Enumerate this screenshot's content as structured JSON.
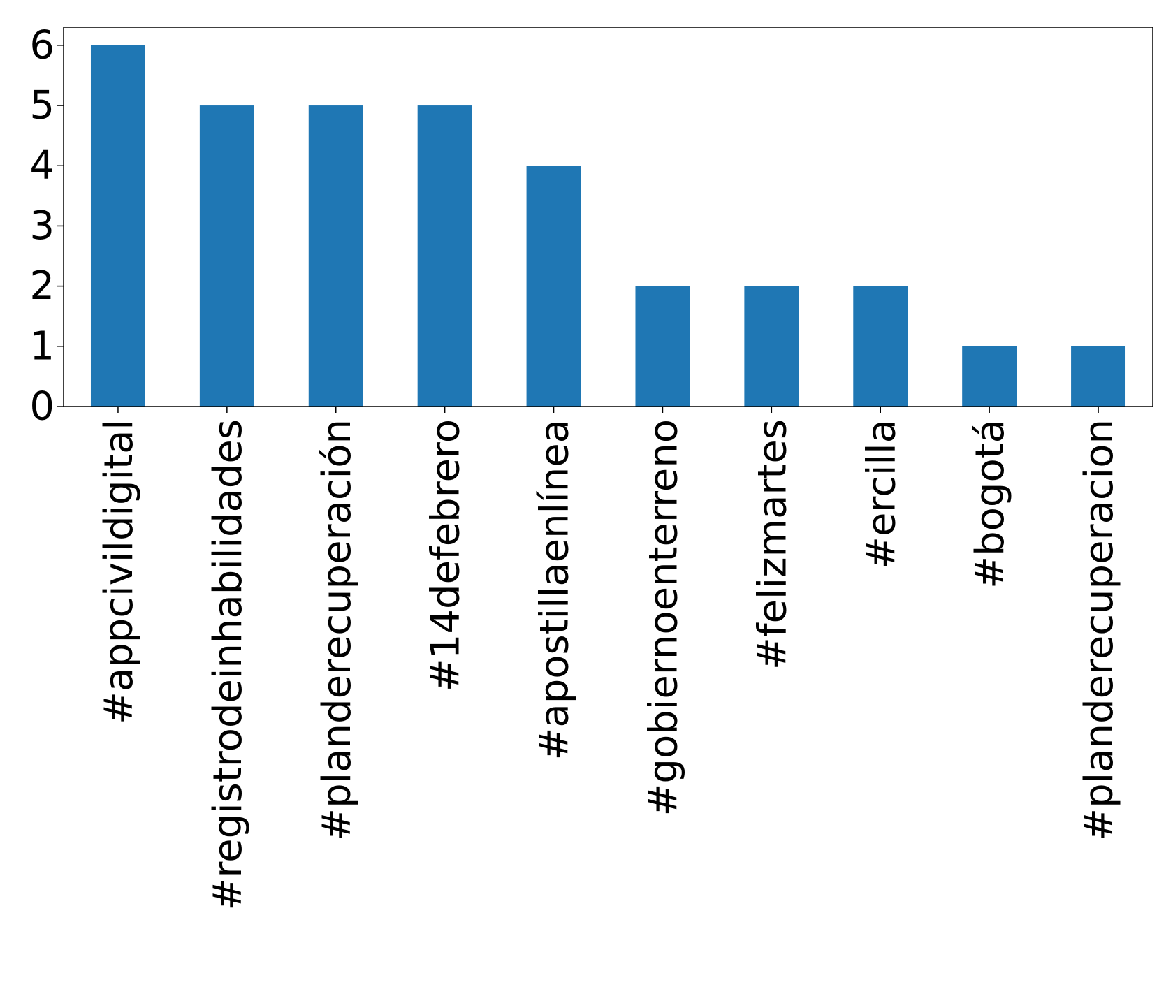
{
  "chart_data": {
    "type": "bar",
    "categories": [
      "#appcivildigital",
      "#registrodeinhabilidades",
      "#planderecuperación",
      "#14defebrero",
      "#apostillaenlínea",
      "#gobiernoenterreno",
      "#felizmartes",
      "#ercilla",
      "#bogotá",
      "#planderecuperacion"
    ],
    "values": [
      6,
      5,
      5,
      5,
      4,
      2,
      2,
      2,
      1,
      1
    ],
    "ylim": [
      0,
      6.3
    ],
    "yticks": [
      0,
      1,
      2,
      3,
      4,
      5,
      6
    ],
    "bar_color": "#1f77b4",
    "grid": false,
    "legend": "none"
  }
}
